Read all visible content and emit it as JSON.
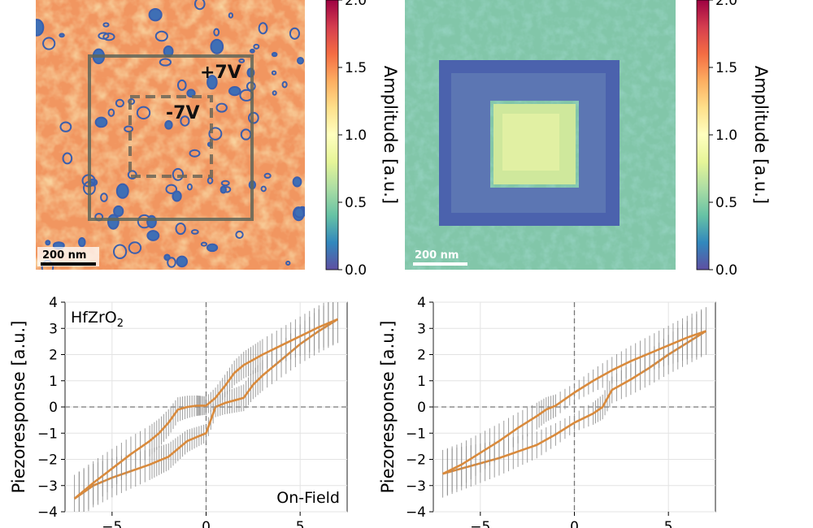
{
  "figure": {
    "colormap": [
      "#5e4fa2",
      "#3288bd",
      "#66c2a5",
      "#abdda4",
      "#e6f598",
      "#ffffbf",
      "#fee08b",
      "#fdae61",
      "#f46d43",
      "#d53e4f",
      "#9e0142"
    ],
    "line_color": "#d98a3c",
    "errorbar_color": "#8c8c8c"
  },
  "chart_data": [
    {
      "type": "heatmap",
      "panel": "top-left",
      "colorbar": {
        "label": "Amplitude [a.u.]",
        "range": [
          0.0,
          2.0
        ],
        "ticks": [
          "0.0",
          "0.5",
          "1.0",
          "1.5",
          "2.0"
        ]
      },
      "scale_bar": "200 nm",
      "annotations": [
        "+7V",
        "-7V"
      ],
      "pattern": "orange/red amplitude map with scattered blue ring-shaped domains; solid box outlines +7V write region, dashed box outlines -7V region"
    },
    {
      "type": "heatmap",
      "panel": "top-right",
      "colorbar": {
        "label": "Amplitude [a.u.]",
        "range": [
          0.0,
          2.0
        ],
        "ticks": [
          "0.0",
          "0.5",
          "1.0",
          "1.5",
          "2.0"
        ]
      },
      "scale_bar": "200 nm",
      "pattern": "green/teal background with dark blue square frame around the +7V region and bright yellow-green inner square"
    },
    {
      "type": "line",
      "panel": "bottom-left",
      "title_annotation": "HfZrO₂",
      "corner_annotation": "On-Field",
      "ylabel": "Piezoresponse [a.u.]",
      "xlim": [
        -7.5,
        7.5
      ],
      "ylim": [
        -4,
        4
      ],
      "xticks": [
        -5,
        0,
        5
      ],
      "yticks": [
        -4,
        -3,
        -2,
        -1,
        0,
        1,
        2,
        3,
        4
      ],
      "grid": true,
      "zero_lines": "dashed",
      "series": [
        {
          "x": [
            -7,
            -6,
            -5,
            -4,
            -3,
            -2.5,
            -2,
            -1.5,
            -1,
            -0.5,
            0,
            0.5,
            1,
            1.5,
            2,
            2.5,
            3,
            4,
            5,
            6,
            7
          ],
          "y": [
            -3.5,
            -3.0,
            -2.7,
            -2.45,
            -2.2,
            -2.05,
            -1.9,
            -1.6,
            -1.3,
            -1.15,
            -1.0,
            0.0,
            0.15,
            0.25,
            0.35,
            0.85,
            1.2,
            1.8,
            2.4,
            2.9,
            3.35
          ]
        },
        {
          "x": [
            7,
            6,
            5,
            4,
            3,
            2.5,
            2,
            1.5,
            1,
            0.5,
            0,
            -0.3,
            -0.5,
            -1,
            -1.5,
            -2,
            -2.5,
            -3,
            -4,
            -5,
            -6,
            -7
          ],
          "y": [
            3.35,
            3.05,
            2.7,
            2.35,
            2.0,
            1.8,
            1.6,
            1.3,
            0.8,
            0.35,
            0.05,
            0.05,
            0.05,
            0.0,
            -0.1,
            -0.6,
            -1.0,
            -1.3,
            -1.8,
            -2.35,
            -2.9,
            -3.5
          ]
        }
      ]
    },
    {
      "type": "line",
      "panel": "bottom-right",
      "ylabel": "Piezoresponse [a.u.]",
      "xlim": [
        -7.5,
        7.5
      ],
      "ylim": [
        -4,
        4
      ],
      "xticks": [
        -5,
        0,
        5
      ],
      "yticks": [
        -4,
        -3,
        -2,
        -1,
        0,
        1,
        2,
        3,
        4
      ],
      "grid": true,
      "zero_lines": "dashed",
      "series": [
        {
          "x": [
            -7,
            -6,
            -5,
            -4,
            -3,
            -2,
            -1,
            0,
            1,
            1.5,
            2,
            3,
            4,
            5,
            6,
            7
          ],
          "y": [
            -2.55,
            -2.35,
            -2.15,
            -1.95,
            -1.7,
            -1.45,
            -1.05,
            -0.6,
            -0.25,
            0.0,
            0.65,
            1.05,
            1.5,
            2.0,
            2.45,
            2.9
          ]
        },
        {
          "x": [
            7,
            6,
            5,
            4,
            3,
            2,
            1,
            0,
            -1,
            -1.5,
            -2,
            -3,
            -4,
            -5,
            -6,
            -7
          ],
          "y": [
            2.9,
            2.65,
            2.35,
            2.05,
            1.75,
            1.4,
            1.0,
            0.55,
            0.05,
            -0.1,
            -0.35,
            -0.8,
            -1.3,
            -1.75,
            -2.2,
            -2.55
          ]
        }
      ]
    }
  ]
}
